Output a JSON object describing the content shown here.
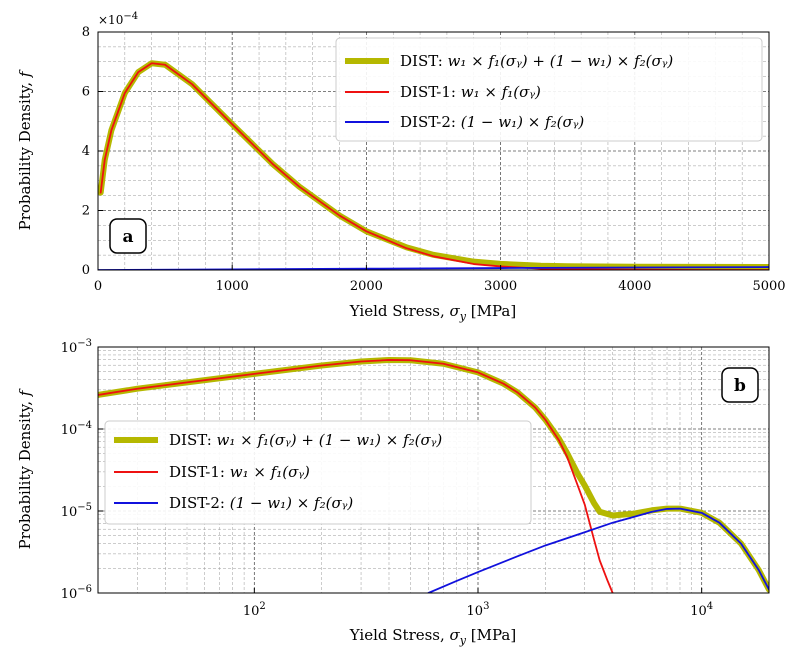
{
  "chart_data": [
    {
      "type": "line",
      "panel_label": "a",
      "xlabel": "Yield Stress, σ_y [MPa]",
      "ylabel": "Probability Density, f",
      "x_scale": "linear",
      "y_scale": "linear",
      "xlim": [
        0,
        5000
      ],
      "ylim": [
        0,
        0.0008
      ],
      "y_multiplier_label": "×10^−4",
      "x_ticks": [
        0,
        1000,
        2000,
        3000,
        4000,
        5000
      ],
      "x_tick_labels": [
        "0",
        "1000",
        "2000",
        "3000",
        "4000",
        "5000"
      ],
      "y_ticks": [
        0,
        0.0002,
        0.0004,
        0.0006,
        0.0008
      ],
      "y_tick_labels": [
        "0",
        "2",
        "4",
        "6",
        "8"
      ],
      "grid": "major and minor, dashed",
      "legend_position": "upper right",
      "series": [
        {
          "name": "DIST: w1 × f1(σy) + (1 − w1) × f2(σy)",
          "color": "#b5b800",
          "x": [
            20,
            50,
            100,
            200,
            300,
            400,
            500,
            700,
            1000,
            1300,
            1500,
            1800,
            2000,
            2300,
            2500,
            2800,
            3000,
            3300,
            3500,
            4000,
            4500,
            5000
          ],
          "y": [
            0.00026,
            0.00037,
            0.00047,
            0.000595,
            0.000665,
            0.000695,
            0.00069,
            0.000625,
            0.00049,
            0.000357,
            0.00028,
            0.000183,
            0.00013,
            7.6e-05,
            5.1e-05,
            2.8e-05,
            2.05e-05,
            1.45e-05,
            1.25e-05,
            1.08e-05,
            1.05e-05,
            1.02e-05
          ]
        },
        {
          "name": "DIST-1: w1 × f1(σy)",
          "color": "#ee1111",
          "x": [
            20,
            50,
            100,
            200,
            300,
            400,
            500,
            700,
            1000,
            1300,
            1500,
            1800,
            2000,
            2300,
            2500,
            2800,
            3000,
            3300,
            3500,
            4000,
            4500,
            5000
          ],
          "y": [
            0.00026,
            0.00037,
            0.00047,
            0.000595,
            0.000665,
            0.000695,
            0.00069,
            0.000625,
            0.00049,
            0.000357,
            0.00028,
            0.000183,
            0.00013,
            7.3e-05,
            4.6e-05,
            2e-05,
            1.2e-05,
            4.5e-06,
            2.5e-06,
            1e-06,
            0,
            0
          ]
        },
        {
          "name": "DIST-2: (1 − w1) × f2(σy)",
          "color": "#1111dd",
          "x": [
            0,
            1000,
            2000,
            3000,
            4000,
            5000
          ],
          "y": [
            0,
            1.8e-06,
            4.5e-06,
            6.5e-06,
            8.5e-06,
            9.8e-06
          ]
        }
      ]
    },
    {
      "type": "line",
      "panel_label": "b",
      "xlabel": "Yield Stress, σ_y [MPa]",
      "ylabel": "Probability Density, f",
      "x_scale": "log",
      "y_scale": "log",
      "xlim": [
        20,
        20000
      ],
      "ylim": [
        1e-06,
        0.001
      ],
      "x_ticks": [
        100,
        1000,
        10000
      ],
      "x_tick_labels": [
        "10^2",
        "10^3",
        "10^4"
      ],
      "y_ticks": [
        1e-06,
        1e-05,
        0.0001,
        0.001
      ],
      "y_tick_labels": [
        "10^−6",
        "10^−5",
        "10^−4",
        "10^−3"
      ],
      "grid": "major and minor, dashed",
      "legend_position": "center left",
      "series": [
        {
          "name": "DIST: w1 × f1(σy) + (1 − w1) × f2(σy)",
          "color": "#b5b800",
          "x": [
            20,
            30,
            50,
            100,
            200,
            300,
            400,
            500,
            700,
            1000,
            1300,
            1500,
            1800,
            2000,
            2300,
            2500,
            2800,
            3000,
            3300,
            3500,
            4000,
            5000,
            6000,
            7000,
            8000,
            10000,
            12000,
            15000,
            18000,
            20000
          ],
          "y": [
            0.00026,
            0.00031,
            0.00037,
            0.00047,
            0.000595,
            0.000665,
            0.000695,
            0.00069,
            0.000625,
            0.00049,
            0.000357,
            0.00028,
            0.000183,
            0.00013,
            7.6e-05,
            5.1e-05,
            2.8e-05,
            2.05e-05,
            1.25e-05,
            9.8e-06,
            8.8e-06,
            9.3e-06,
            1.02e-05,
            1.07e-05,
            1.07e-05,
            9.5e-06,
            7.2e-06,
            4e-06,
            1.9e-06,
            1.1e-06
          ]
        },
        {
          "name": "DIST-1: w1 × f1(σy)",
          "color": "#ee1111",
          "x": [
            20,
            30,
            50,
            100,
            200,
            300,
            400,
            500,
            700,
            1000,
            1300,
            1500,
            1800,
            2000,
            2300,
            2500,
            2800,
            3000,
            3300,
            3500,
            3800,
            4000
          ],
          "y": [
            0.00026,
            0.00031,
            0.00037,
            0.00047,
            0.000595,
            0.000665,
            0.000695,
            0.00069,
            0.000625,
            0.00049,
            0.000357,
            0.00028,
            0.000183,
            0.00013,
            7.3e-05,
            4.6e-05,
            2e-05,
            1.2e-05,
            4.5e-06,
            2.5e-06,
            1.4e-06,
            1e-06
          ]
        },
        {
          "name": "DIST-2: (1 − w1) × f2(σy)",
          "color": "#1111dd",
          "x": [
            600,
            800,
            1000,
            1500,
            2000,
            3000,
            4000,
            5000,
            6000,
            7000,
            8000,
            10000,
            12000,
            15000,
            18000,
            20000
          ],
          "y": [
            1e-06,
            1.4e-06,
            1.8e-06,
            2.8e-06,
            3.8e-06,
            5.5e-06,
            7.2e-06,
            8.5e-06,
            9.8e-06,
            1.06e-05,
            1.07e-05,
            9.5e-06,
            7.2e-06,
            4e-06,
            1.9e-06,
            1.1e-06
          ]
        }
      ]
    }
  ],
  "legend": {
    "dist": {
      "prefix": "DIST:",
      "formula": "w₁ × f₁(σᵧ) + (1 − w₁) × f₂(σᵧ)"
    },
    "dist1": {
      "prefix": "DIST-1:",
      "formula": "w₁ × f₁(σᵧ)"
    },
    "dist2": {
      "prefix": "DIST-2:",
      "formula": "(1 − w₁) × f₂(σᵧ)"
    }
  },
  "colors": {
    "dist": "#b5b800",
    "dist1": "#ee1111",
    "dist2": "#1111dd"
  }
}
